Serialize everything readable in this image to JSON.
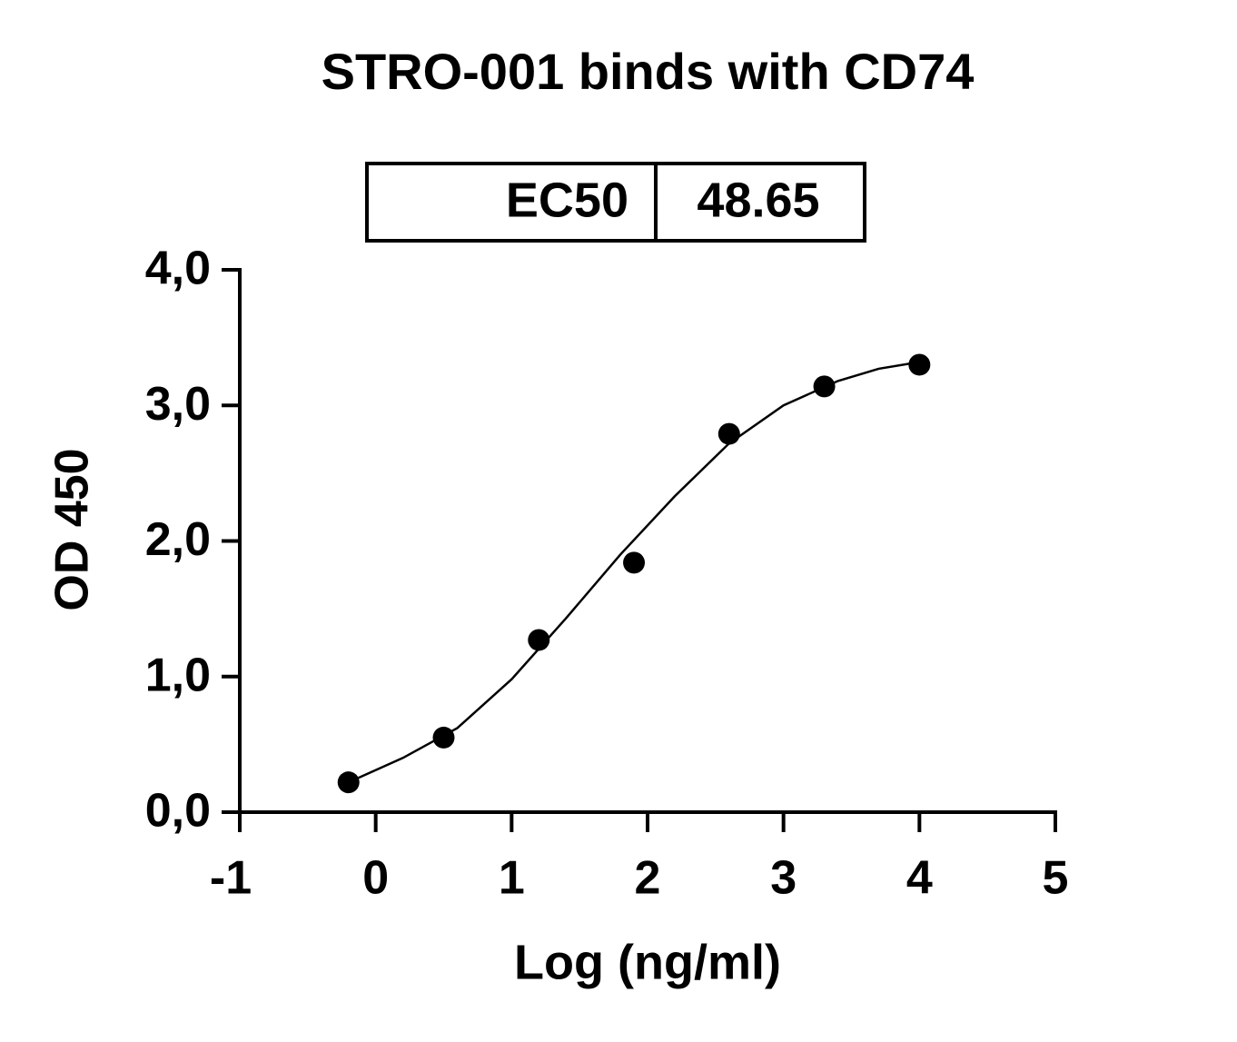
{
  "chart_data": {
    "type": "scatter",
    "title": "STRO-001 binds with CD74",
    "x_label": "Log (ng/ml)",
    "y_label": "OD 450",
    "annotation": {
      "label": "EC50",
      "value": 48.65
    },
    "series": [
      {
        "mode": "markers",
        "color": "#000000",
        "x": [
          -0.2,
          0.5,
          1.2,
          1.9,
          2.6,
          3.3,
          4.0
        ],
        "values": [
          0.22,
          0.55,
          1.27,
          1.84,
          2.79,
          3.14,
          3.3
        ]
      },
      {
        "mode": "line",
        "color": "#000000",
        "x": [
          -0.2,
          0.2,
          0.6,
          1.0,
          1.4,
          1.8,
          2.2,
          2.6,
          3.0,
          3.4,
          3.7,
          4.0
        ],
        "values": [
          0.22,
          0.4,
          0.62,
          0.98,
          1.43,
          1.9,
          2.33,
          2.72,
          3.0,
          3.18,
          3.27,
          3.32
        ]
      }
    ],
    "xlim": [
      -1,
      5
    ],
    "xticks": [
      -1,
      0,
      1,
      2,
      3,
      4,
      5
    ],
    "ylim": [
      0,
      4
    ],
    "yticks": [
      {
        "value": 0,
        "label": "0,0"
      },
      {
        "value": 1,
        "label": "1,0"
      },
      {
        "value": 2,
        "label": "2,0"
      },
      {
        "value": 3,
        "label": "3,0"
      },
      {
        "value": 4,
        "label": "4,0"
      }
    ],
    "grid": false
  }
}
